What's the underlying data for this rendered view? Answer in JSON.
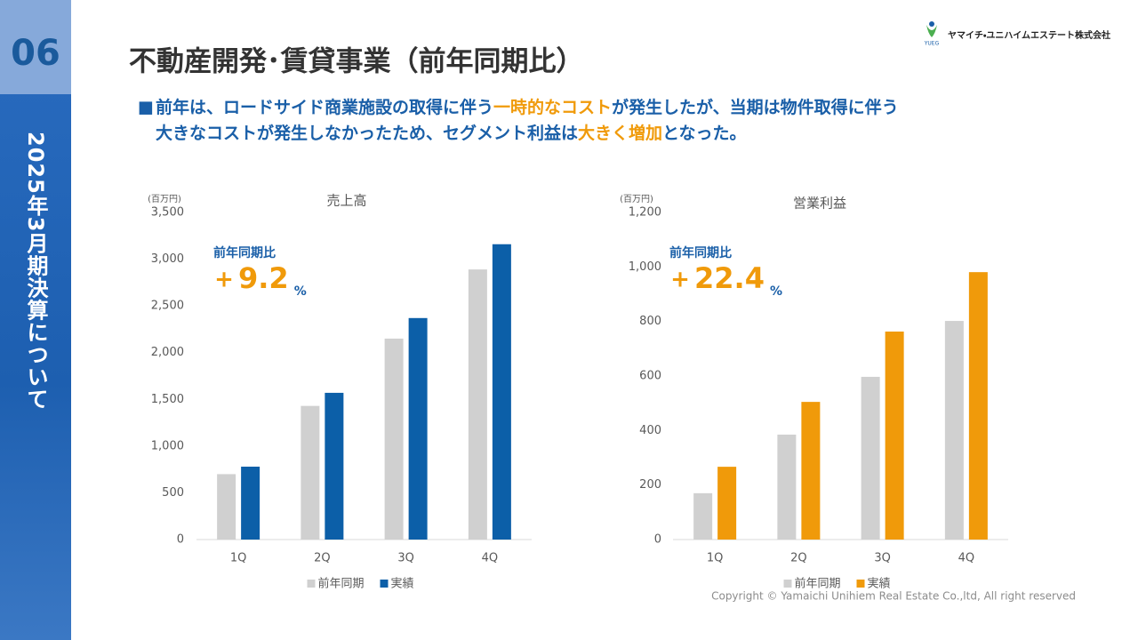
{
  "sidebar": {
    "number": "06",
    "caption": "2025年3月期決算について"
  },
  "logo": {
    "mark": "YUEG",
    "company": "ヤマイチ・ユニハイムエステート株式会社"
  },
  "title": "不動産開発･賃貸事業（前年同期比）",
  "lead": {
    "bullet": "■",
    "lines": [
      [
        {
          "text": "前年は、ロードサイド商業施設の取得に伴う",
          "style": "normal"
        },
        {
          "text": "一時的なコスト",
          "style": "highlight"
        },
        {
          "text": "が発生したが、当期は物件取得に伴う",
          "style": "normal"
        }
      ],
      [
        {
          "text": "大きなコストが発生しなかったため、セグメント利益は",
          "style": "normal"
        },
        {
          "text": "大きく増加",
          "style": "highlight"
        },
        {
          "text": "となった。",
          "style": "normal"
        }
      ]
    ]
  },
  "copyright": "Copyright © Yamaichi Unihiem Real Estate Co.,ltd, All right reserved",
  "chart_data": [
    {
      "type": "bar",
      "title": "売上高",
      "unit_label": "(百万円)",
      "categories": [
        "1Q",
        "2Q",
        "3Q",
        "4Q"
      ],
      "series": [
        {
          "name": "前年同期",
          "color": "#d0d0d0",
          "values": [
            700,
            1430,
            2150,
            2890
          ]
        },
        {
          "name": "実績",
          "color": "#0c5fa8",
          "values": [
            780,
            1570,
            2370,
            3160
          ]
        }
      ],
      "ylim": [
        0,
        3500
      ],
      "yticks": [
        0,
        500,
        {
          "value": 1000,
          "label": "1,000"
        },
        {
          "value": 1500,
          "label": "1,500"
        },
        {
          "value": 2000,
          "label": "2,000"
        },
        {
          "value": 2500,
          "label": "2,500"
        },
        {
          "value": 3000,
          "label": "3,000"
        },
        {
          "value": 3500,
          "label": "3,500"
        }
      ],
      "grid": false,
      "legend": "bottom",
      "annotation": {
        "label": "前年同期比",
        "sign": "+",
        "value": "9.2",
        "unit": "%"
      }
    },
    {
      "type": "bar",
      "title": "営業利益",
      "unit_label": "(百万円)",
      "categories": [
        "1Q",
        "2Q",
        "3Q",
        "4Q"
      ],
      "series": [
        {
          "name": "前年同期",
          "color": "#d0d0d0",
          "values": [
            170,
            385,
            597,
            802
          ]
        },
        {
          "name": "実績",
          "color": "#f09a0a",
          "values": [
            267,
            505,
            763,
            981
          ]
        }
      ],
      "ylim": [
        0,
        1200
      ],
      "yticks": [
        0,
        200,
        400,
        600,
        800,
        {
          "value": 1000,
          "label": "1,000"
        },
        {
          "value": 1200,
          "label": "1,200"
        }
      ],
      "grid": false,
      "legend": "bottom",
      "annotation": {
        "label": "前年同期比",
        "sign": "+",
        "value": "22.4",
        "unit": "%"
      }
    }
  ]
}
